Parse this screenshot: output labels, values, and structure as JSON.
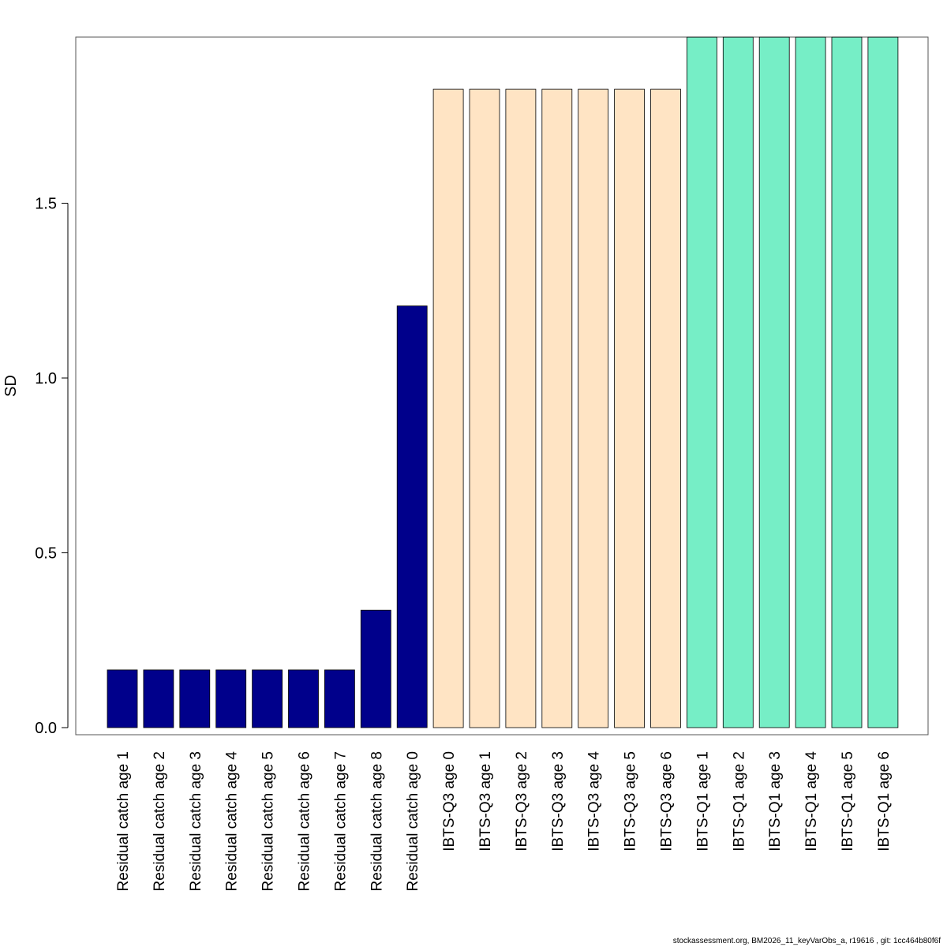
{
  "chart_data": {
    "type": "bar",
    "ylabel": "SD",
    "xlabel": "",
    "ylim": [
      0,
      1.95
    ],
    "yticks": [
      "0.0",
      "0.5",
      "1.0",
      "1.5"
    ],
    "ytick_values": [
      0,
      0.5,
      1.0,
      1.5
    ],
    "categories": [
      "Residual catch age 1",
      "Residual catch age 2",
      "Residual catch age 3",
      "Residual catch age 4",
      "Residual catch age 5",
      "Residual catch age 6",
      "Residual catch age 7",
      "Residual catch age 8",
      "Residual catch age 0",
      "IBTS-Q3 age 0",
      "IBTS-Q3 age 1",
      "IBTS-Q3 age 2",
      "IBTS-Q3 age 3",
      "IBTS-Q3 age 4",
      "IBTS-Q3 age 5",
      "IBTS-Q3 age 6",
      "IBTS-Q1 age 1",
      "IBTS-Q1 age 2",
      "IBTS-Q1 age 3",
      "IBTS-Q1 age 4",
      "IBTS-Q1 age 5",
      "IBTS-Q1 age 6"
    ],
    "values": [
      0.165,
      0.165,
      0.165,
      0.165,
      0.165,
      0.165,
      0.165,
      0.336,
      1.206,
      1.826,
      1.826,
      1.826,
      1.826,
      1.826,
      1.826,
      1.826,
      1.975,
      1.975,
      1.975,
      1.975,
      1.975,
      1.975
    ],
    "colors": [
      "#00008B",
      "#00008B",
      "#00008B",
      "#00008B",
      "#00008B",
      "#00008B",
      "#00008B",
      "#00008B",
      "#00008B",
      "#FFE4C4",
      "#FFE4C4",
      "#FFE4C4",
      "#FFE4C4",
      "#FFE4C4",
      "#FFE4C4",
      "#FFE4C4",
      "#76EEC6",
      "#76EEC6",
      "#76EEC6",
      "#76EEC6",
      "#76EEC6",
      "#76EEC6"
    ],
    "grid": false
  },
  "footer": "stockassessment.org, BM2026_11_keyVarObs_a, r19616 , git: 1cc464b80f6f"
}
